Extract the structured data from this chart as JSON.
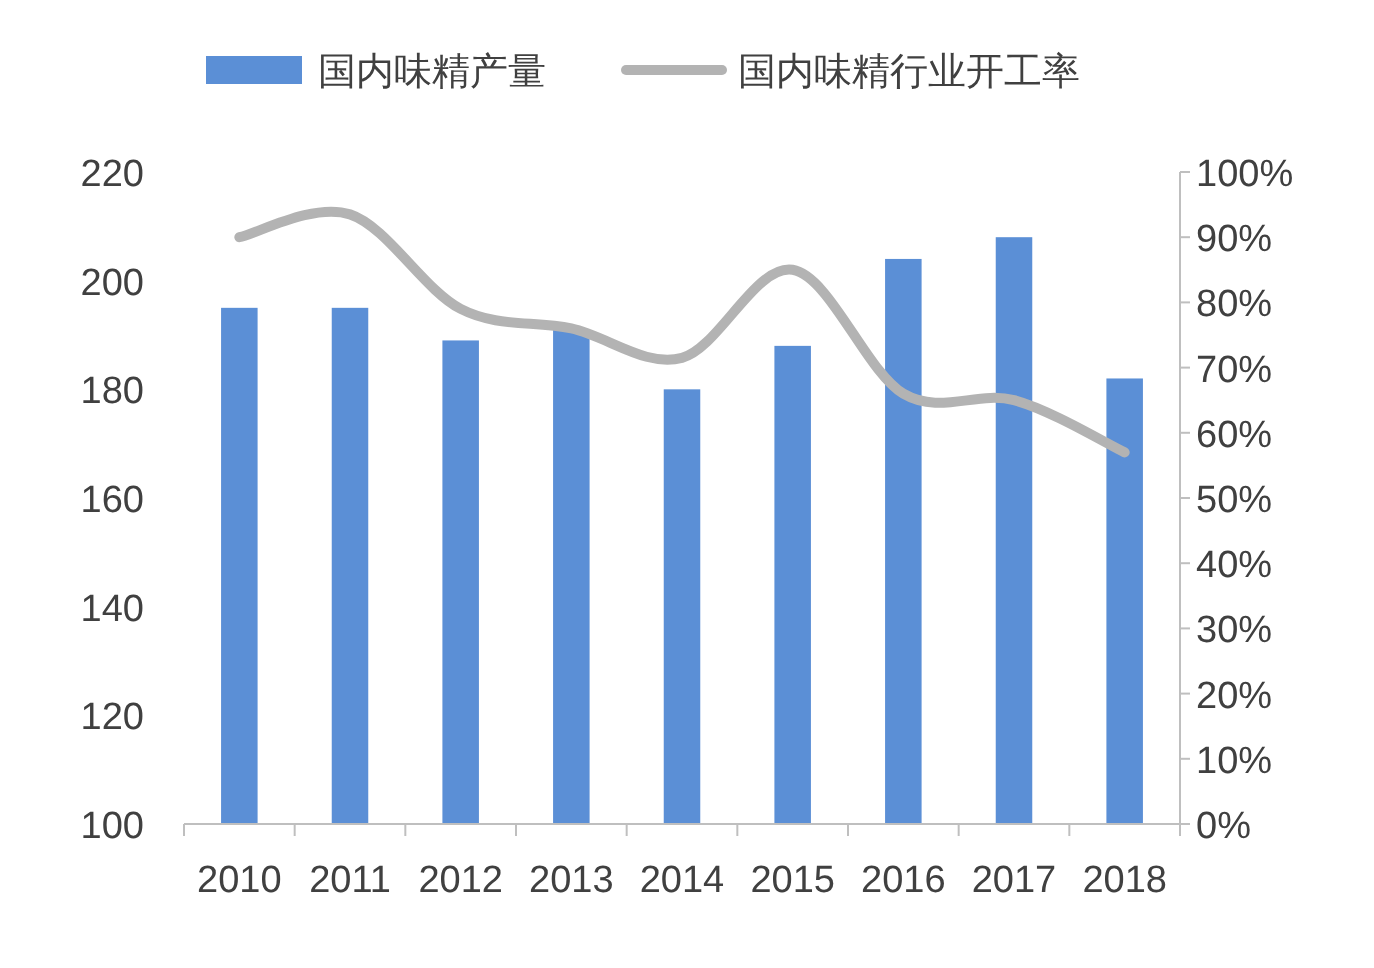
{
  "chart_data": {
    "type": "bar",
    "categories": [
      "2010",
      "2011",
      "2012",
      "2013",
      "2014",
      "2015",
      "2016",
      "2017",
      "2018"
    ],
    "series": [
      {
        "name": "国内味精产量",
        "color": "#5b8fd6",
        "values": [
          195,
          195,
          189,
          191,
          180,
          188,
          204,
          208,
          182
        ]
      },
      {
        "name": "国内味精行业开工率",
        "type": "line",
        "axis": "y2",
        "color": "#b3b3b3",
        "values": [
          90,
          93.5,
          79,
          76,
          71.5,
          85,
          66,
          65,
          57
        ]
      }
    ],
    "ylim": [
      100,
      220
    ],
    "yticks": [
      100,
      120,
      140,
      160,
      180,
      200,
      220
    ],
    "y2lim": [
      0,
      100
    ],
    "y2ticks": [
      {
        "value": 0,
        "label": "0%"
      },
      {
        "value": 10,
        "label": "10%"
      },
      {
        "value": 20,
        "label": "20%"
      },
      {
        "value": 30,
        "label": "30%"
      },
      {
        "value": 40,
        "label": "40%"
      },
      {
        "value": 50,
        "label": "50%"
      },
      {
        "value": 60,
        "label": "60%"
      },
      {
        "value": 70,
        "label": "70%"
      },
      {
        "value": 80,
        "label": "80%"
      },
      {
        "value": 90,
        "label": "90%"
      },
      {
        "value": 100,
        "label": "100%"
      }
    ],
    "legend": "top",
    "grid": false
  }
}
